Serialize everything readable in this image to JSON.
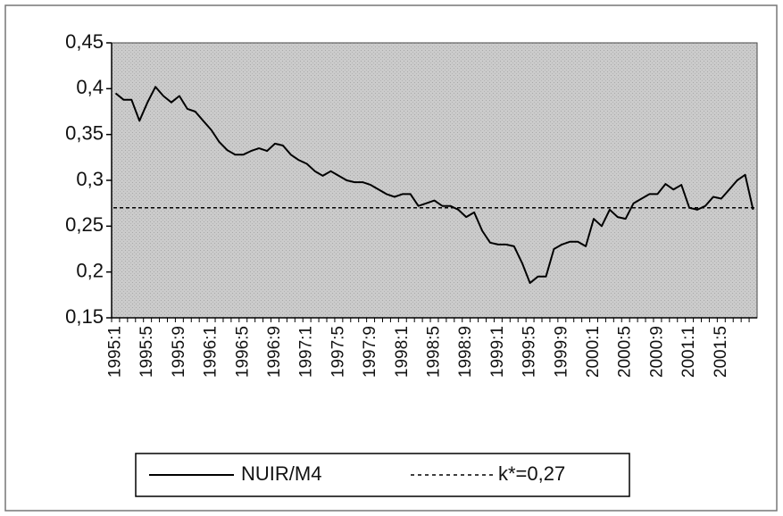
{
  "chart_data": {
    "type": "line",
    "categories": [
      "1995:1",
      null,
      null,
      null,
      "1995:5",
      null,
      null,
      null,
      "1995:9",
      null,
      null,
      null,
      "1996:1",
      null,
      null,
      null,
      "1996:5",
      null,
      null,
      null,
      "1996:9",
      null,
      null,
      null,
      "1997:1",
      null,
      null,
      null,
      "1997:5",
      null,
      null,
      null,
      "1997:9",
      null,
      null,
      null,
      "1998:1",
      null,
      null,
      null,
      "1998:5",
      null,
      null,
      null,
      "1998:9",
      null,
      null,
      null,
      "1999:1",
      null,
      null,
      null,
      "1999:5",
      null,
      null,
      null,
      "1999:9",
      null,
      null,
      null,
      "2000:1",
      null,
      null,
      null,
      "2000:5",
      null,
      null,
      null,
      "2000:9",
      null,
      null,
      null,
      "2001:1",
      null,
      null,
      null,
      "2001:5",
      null,
      null,
      null,
      null
    ],
    "series": [
      {
        "name": "NUIR/M4",
        "color": "#000000",
        "values": [
          0.395,
          0.388,
          0.388,
          0.365,
          0.385,
          0.402,
          0.392,
          0.385,
          0.392,
          0.378,
          0.375,
          0.365,
          0.355,
          0.342,
          0.333,
          0.328,
          0.328,
          0.332,
          0.335,
          0.332,
          0.34,
          0.338,
          0.328,
          0.322,
          0.318,
          0.31,
          0.305,
          0.31,
          0.305,
          0.3,
          0.298,
          0.298,
          0.295,
          0.29,
          0.285,
          0.282,
          0.285,
          0.285,
          0.272,
          0.275,
          0.278,
          0.272,
          0.272,
          0.268,
          0.26,
          0.265,
          0.245,
          0.232,
          0.23,
          0.23,
          0.228,
          0.21,
          0.188,
          0.195,
          0.195,
          0.225,
          0.23,
          0.233,
          0.233,
          0.228,
          0.258,
          0.25,
          0.268,
          0.26,
          0.258,
          0.275,
          0.28,
          0.285,
          0.285,
          0.296,
          0.29,
          0.295,
          0.27,
          0.268,
          0.272,
          0.282,
          0.28,
          0.29,
          0.3,
          0.306,
          0.268
        ]
      }
    ],
    "reference_line": {
      "name": "k*=0,27",
      "value": 0.27,
      "color": "#000000"
    },
    "ylim": [
      0.15,
      0.45
    ],
    "yticks": [
      {
        "value": 0.15,
        "label": "0,15"
      },
      {
        "value": 0.2,
        "label": "0,2"
      },
      {
        "value": 0.25,
        "label": "0,25"
      },
      {
        "value": 0.3,
        "label": "0,3"
      },
      {
        "value": 0.35,
        "label": "0,35"
      },
      {
        "value": 0.4,
        "label": "0,4"
      },
      {
        "value": 0.45,
        "label": "0,45"
      }
    ],
    "legend": "bottom"
  }
}
